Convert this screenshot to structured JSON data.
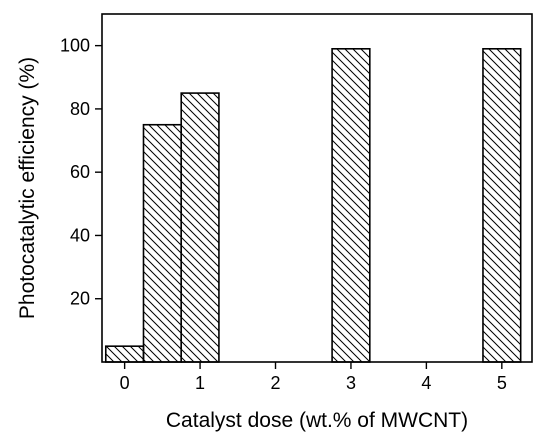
{
  "chart_data": {
    "type": "bar",
    "title": "",
    "xlabel": "Catalyst dose (wt.% of MWCNT)",
    "ylabel": "Photocatalytic efficiency (%)",
    "x": [
      0,
      0.5,
      1,
      3,
      5
    ],
    "values": [
      5,
      75,
      85,
      99,
      99
    ],
    "bar_width": 0.5,
    "xlim": [
      -0.3,
      5.4
    ],
    "ylim": [
      0,
      110
    ],
    "xticks": [
      0,
      1,
      2,
      3,
      4,
      5
    ],
    "yticks": [
      20,
      40,
      60,
      80,
      100
    ],
    "bar_fill": "diagonal-hatch",
    "colors": {
      "bar_stroke": "#000000",
      "hatch": "#000000",
      "background": "#ffffff"
    },
    "grid": false,
    "legend": "none"
  }
}
